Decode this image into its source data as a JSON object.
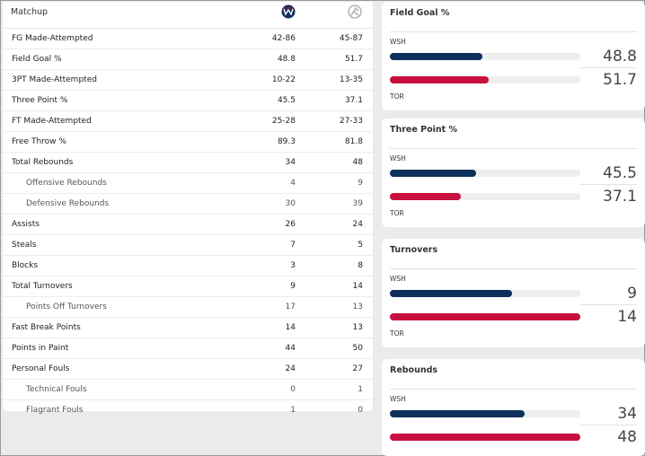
{
  "matchup": {
    "title": "Matchup",
    "rows": [
      {
        "label": "FG Made-Attempted",
        "wsh": "42-86",
        "tor": "45-87",
        "sub": false
      },
      {
        "label": "Field Goal %",
        "wsh": "48.8",
        "tor": "51.7",
        "sub": false
      },
      {
        "label": "3PT Made-Attempted",
        "wsh": "10-22",
        "tor": "13-35",
        "sub": false
      },
      {
        "label": "Three Point %",
        "wsh": "45.5",
        "tor": "37.1",
        "sub": false
      },
      {
        "label": "FT Made-Attempted",
        "wsh": "25-28",
        "tor": "27-33",
        "sub": false
      },
      {
        "label": "Free Throw %",
        "wsh": "89.3",
        "tor": "81.8",
        "sub": false
      },
      {
        "label": "Total Rebounds",
        "wsh": "34",
        "tor": "48",
        "sub": false
      },
      {
        "label": "Offensive Rebounds",
        "wsh": "4",
        "tor": "9",
        "sub": true
      },
      {
        "label": "Defensive Rebounds",
        "wsh": "30",
        "tor": "39",
        "sub": true
      },
      {
        "label": "Assists",
        "wsh": "26",
        "tor": "24",
        "sub": false
      },
      {
        "label": "Steals",
        "wsh": "7",
        "tor": "5",
        "sub": false
      },
      {
        "label": "Blocks",
        "wsh": "3",
        "tor": "8",
        "sub": false
      },
      {
        "label": "Total Turnovers",
        "wsh": "9",
        "tor": "14",
        "sub": false
      },
      {
        "label": "Points Off Turnovers",
        "wsh": "17",
        "tor": "13",
        "sub": true
      },
      {
        "label": "Fast Break Points",
        "wsh": "14",
        "tor": "13",
        "sub": false
      },
      {
        "label": "Points in Paint",
        "wsh": "44",
        "tor": "50",
        "sub": false
      },
      {
        "label": "Personal Fouls",
        "wsh": "24",
        "tor": "27",
        "sub": false
      },
      {
        "label": "Technical Fouls",
        "wsh": "0",
        "tor": "1",
        "sub": true
      },
      {
        "label": "Flagrant Fouls",
        "wsh": "1",
        "tor": "0",
        "sub": true
      }
    ]
  },
  "teams": {
    "home": "WSH",
    "away": "TOR"
  },
  "colors": {
    "wsh": "#0c2f5b",
    "tor": "#c8103e"
  },
  "cards": [
    {
      "title": "Field Goal %",
      "wsh": "48.8",
      "tor": "51.7",
      "wsh_fraction": 0.488,
      "tor_fraction": 0.517
    },
    {
      "title": "Three Point %",
      "wsh": "45.5",
      "tor": "37.1",
      "wsh_fraction": 0.455,
      "tor_fraction": 0.371
    },
    {
      "title": "Turnovers",
      "wsh": "9",
      "tor": "14",
      "wsh_fraction": 0.643,
      "tor_fraction": 1.0
    },
    {
      "title": "Rebounds",
      "wsh": "34",
      "tor": "48",
      "wsh_fraction": 0.708,
      "tor_fraction": 1.0
    }
  ]
}
